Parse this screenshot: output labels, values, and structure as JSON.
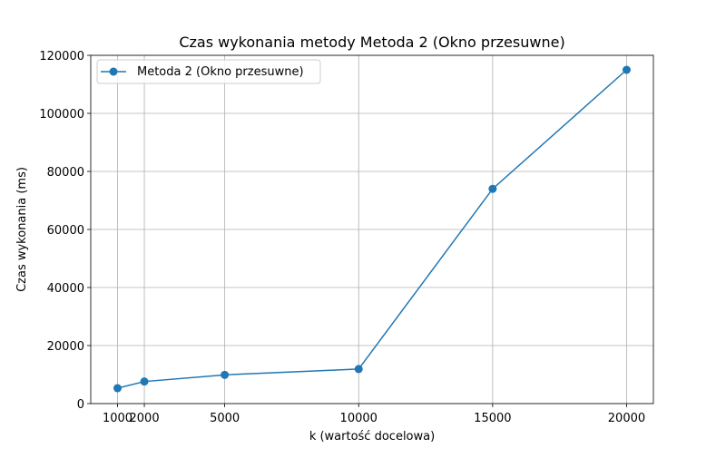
{
  "chart_data": {
    "type": "line",
    "title": "Czas wykonania metody Metoda 2 (Okno przesuwne)",
    "xlabel": "k (wartość docelowa)",
    "ylabel": "Czas wykonania (ms)",
    "x": [
      1000,
      2000,
      5000,
      10000,
      15000,
      20000
    ],
    "x_ticks": [
      1000,
      2000,
      5000,
      10000,
      15000,
      20000
    ],
    "y_ticks": [
      0,
      20000,
      40000,
      60000,
      80000,
      100000,
      120000
    ],
    "ylim": [
      0,
      120000
    ],
    "xlim": [
      0,
      21000
    ],
    "grid": true,
    "legend_position": "top-left",
    "series": [
      {
        "name": "Metoda 2 (Okno przesuwne)",
        "color": "#1f77b4",
        "marker": "circle",
        "values": [
          5300,
          7600,
          9900,
          11900,
          74000,
          115000
        ]
      }
    ]
  }
}
